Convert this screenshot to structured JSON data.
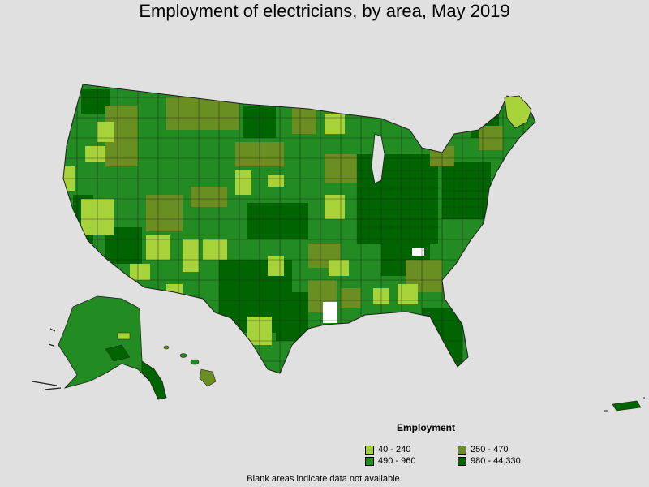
{
  "title": "Employment of electricians, by area, May 2019",
  "legend": {
    "title": "Employment",
    "items": [
      {
        "label": "40 - 240",
        "color": "#a8d23a"
      },
      {
        "label": "250 - 470",
        "color": "#6b8e23"
      },
      {
        "label": "490 - 960",
        "color": "#228b22"
      },
      {
        "label": "980 - 44,330",
        "color": "#006400"
      }
    ]
  },
  "footnote": "Blank areas indicate data not available.",
  "colors": {
    "background": "#e0e0e0",
    "border": "#1f1f1f"
  }
}
